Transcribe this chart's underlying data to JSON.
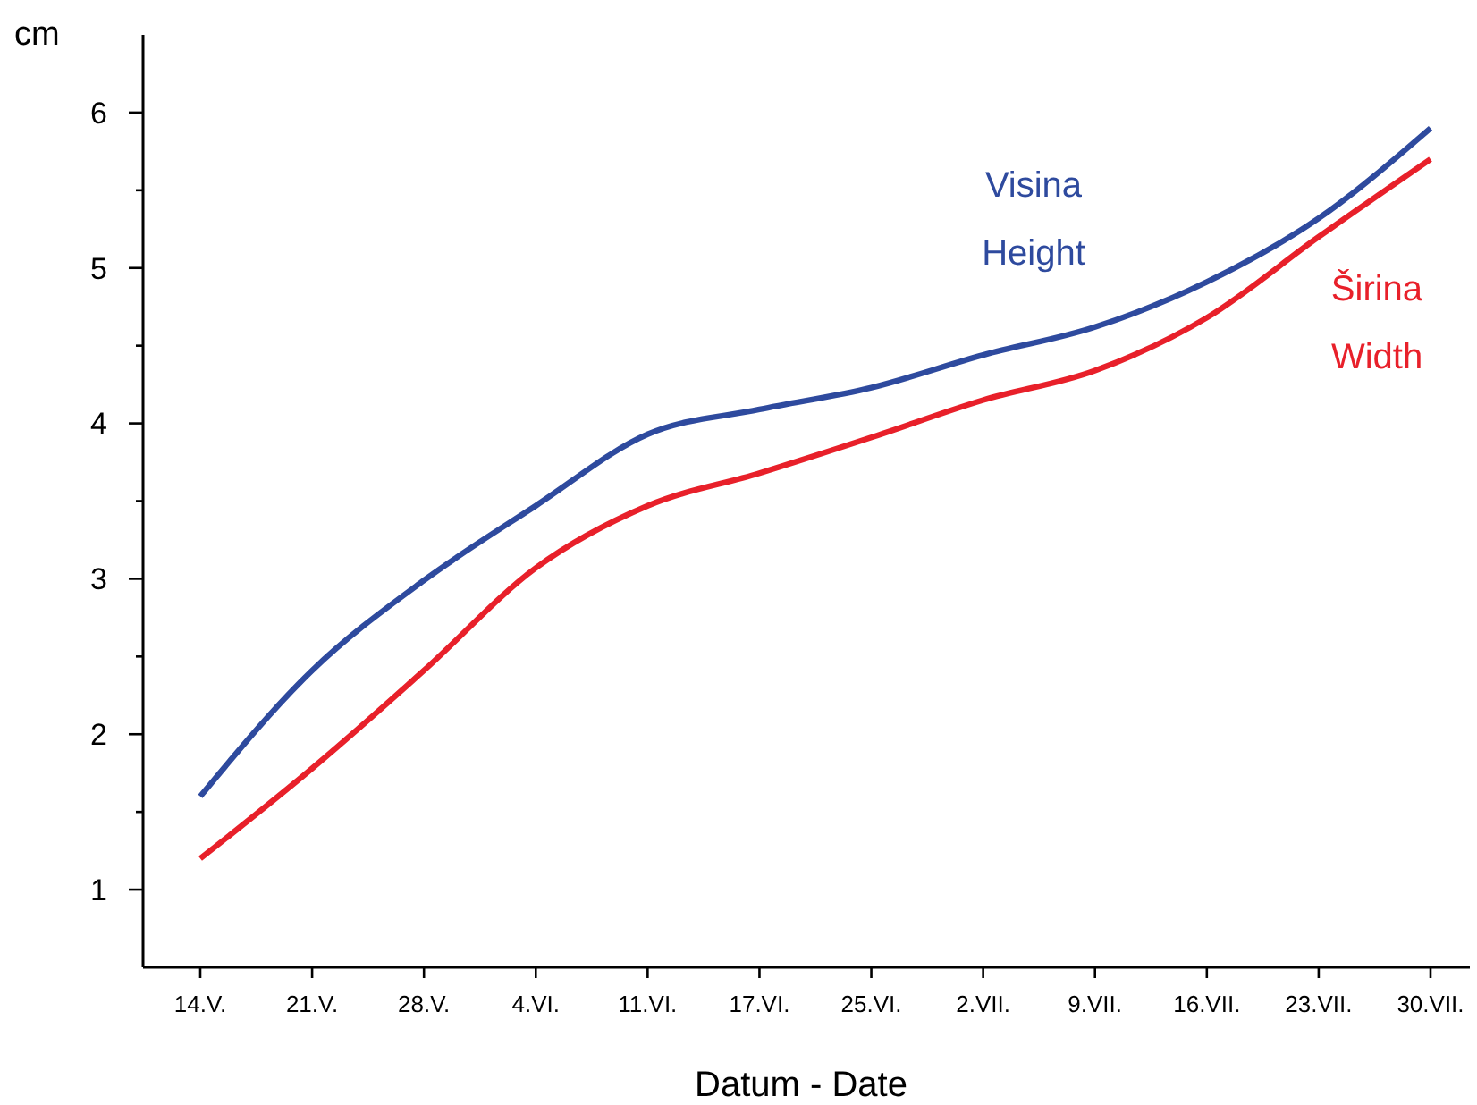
{
  "chart_data": {
    "type": "line",
    "xlabel": "Datum - Date",
    "ylabel": "cm",
    "categories": [
      "14.V.",
      "21.V.",
      "28.V.",
      "4.VI.",
      "11.VI.",
      "17.VI.",
      "25.VI.",
      "2.VII.",
      "9.VII.",
      "16.VII.",
      "23.VII.",
      "30.VII."
    ],
    "ylim": [
      0.5,
      6.5
    ],
    "yticks": [
      1,
      {
        "value": 1.5,
        "label": null
      },
      2,
      {
        "value": 2.5,
        "label": null
      },
      3,
      {
        "value": 3.5,
        "label": null
      },
      4,
      {
        "value": 4.5,
        "label": null
      },
      5,
      {
        "value": 5.5,
        "label": null
      },
      6
    ],
    "grid": false,
    "marker": "none",
    "line_style": "solid",
    "series": [
      {
        "name": "Visina\nHeight",
        "color": "#2e4a9e",
        "values": [
          1.6,
          2.41,
          2.99,
          3.47,
          3.93,
          4.09,
          4.23,
          4.44,
          4.62,
          4.91,
          5.32,
          5.9
        ]
      },
      {
        "name": "Širina\nWidth",
        "color": "#e8202a",
        "values": [
          1.2,
          1.78,
          2.41,
          3.07,
          3.47,
          3.68,
          3.91,
          4.15,
          4.34,
          4.68,
          5.2,
          5.7
        ]
      }
    ]
  }
}
